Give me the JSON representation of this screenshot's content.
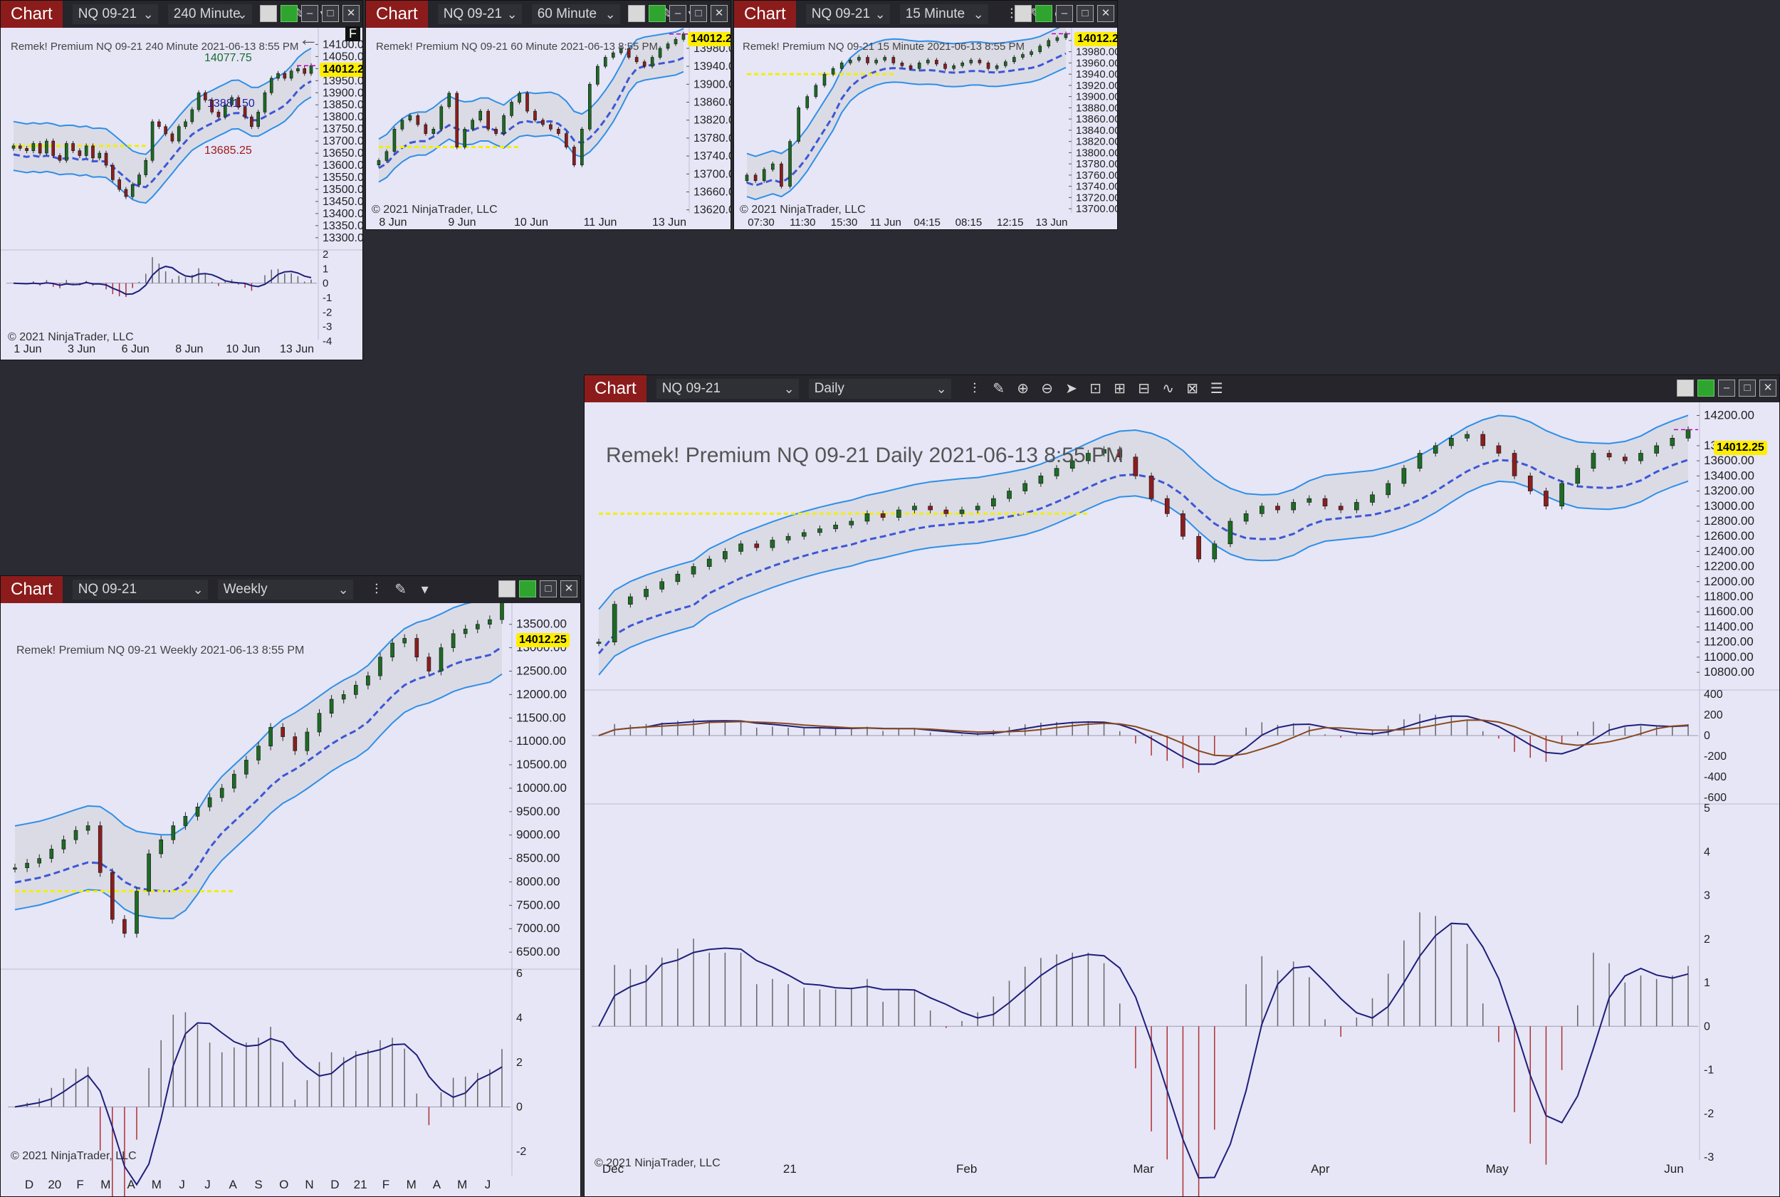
{
  "common": {
    "chart_label": "Chart",
    "copyright": "© 2021 NinjaTrader, LLC",
    "last_price": "14012.25"
  },
  "colors": {
    "bg": "#e6e6f7",
    "band": "#2f8fe6",
    "midline": "#3d57d6",
    "yellow": "#f2ee00",
    "bull": "#1d6b24",
    "bear": "#8b1e1e",
    "osc": "#1f1f7a",
    "osc2": "#8a4a1e",
    "price_tag": "#ffee00",
    "accent_red": "#b01010"
  },
  "charts": [
    {
      "id": "c240",
      "instrument": "NQ 09-21",
      "period": "240 Minute",
      "annotation": "Remek!  Premium  NQ 09-21  240 Minute  2021-06-13 8:55 PM",
      "labels": {
        "high": "14077.75",
        "mid": "13881.50",
        "low": "13685.25"
      },
      "back_icon": "arrow-left-icon",
      "f_label": "F",
      "chart_data": {
        "type": "candlestick",
        "y_ticks": [
          "14100.00",
          "14050.00",
          "14000.00",
          "13950.00",
          "13900.00",
          "13850.00",
          "13800.00",
          "13750.00",
          "13700.00",
          "13650.00",
          "13600.00",
          "13550.00",
          "13500.00",
          "13450.00",
          "13400.00",
          "13350.00",
          "13300.00"
        ],
        "x_ticks": [
          "1 Jun",
          "3 Jun",
          "6 Jun",
          "8 Jun",
          "10 Jun",
          "13 Jun"
        ],
        "osc_ticks": [
          "2",
          "1",
          "0",
          "-1",
          "-2",
          "-3",
          "-4"
        ],
        "ylim": [
          13270,
          14110
        ],
        "close": [
          13680,
          13670,
          13660,
          13690,
          13650,
          13700,
          13640,
          13620,
          13690,
          13660,
          13640,
          13680,
          13630,
          13650,
          13600,
          13540,
          13500,
          13470,
          13520,
          13560,
          13620,
          13780,
          13760,
          13730,
          13700,
          13760,
          13780,
          13830,
          13900,
          13870,
          13820,
          13800,
          13850,
          13880,
          13840,
          13800,
          13760,
          13820,
          13900,
          13960,
          13980,
          13960,
          13990,
          14000,
          13980,
          14012
        ]
      }
    },
    {
      "id": "c60",
      "instrument": "NQ 09-21",
      "period": "60 Minute",
      "annotation": "Remek!  Premium  NQ 09-21  60 Minute  2021-06-13 8:55 PM",
      "chart_data": {
        "type": "candlestick",
        "y_ticks": [
          "13980.00",
          "13940.00",
          "13900.00",
          "13860.00",
          "13820.00",
          "13780.00",
          "13740.00",
          "13700.00",
          "13660.00",
          "13620.00"
        ],
        "x_ticks": [
          "8 Jun",
          "9 Jun",
          "10 Jun",
          "11 Jun",
          "13 Jun"
        ],
        "ylim": [
          13610,
          14010
        ],
        "close": [
          13730,
          13750,
          13800,
          13820,
          13830,
          13810,
          13790,
          13800,
          13850,
          13880,
          13760,
          13800,
          13820,
          13840,
          13800,
          13790,
          13830,
          13860,
          13880,
          13840,
          13820,
          13810,
          13800,
          13790,
          13760,
          13720,
          13800,
          13900,
          13940,
          13960,
          13970,
          13980,
          13960,
          13950,
          13940,
          13960,
          13980,
          13990,
          14000,
          14012
        ]
      }
    },
    {
      "id": "c15",
      "instrument": "NQ 09-21",
      "period": "15 Minute",
      "annotation": "Remek!  Premium  NQ 09-21  15 Minute  2021-06-13 8:55 PM",
      "chart_data": {
        "type": "candlestick",
        "y_ticks": [
          "14000.00",
          "13980.00",
          "13960.00",
          "13940.00",
          "13920.00",
          "13900.00",
          "13880.00",
          "13860.00",
          "13840.00",
          "13820.00",
          "13800.00",
          "13780.00",
          "13760.00",
          "13740.00",
          "13720.00",
          "13700.00"
        ],
        "x_ticks": [
          "07:30",
          "11:30",
          "15:30",
          "11 Jun",
          "04:15",
          "08:15",
          "12:15",
          "13 Jun"
        ],
        "ylim": [
          13690,
          14010
        ],
        "close": [
          13760,
          13750,
          13770,
          13780,
          13740,
          13820,
          13880,
          13900,
          13920,
          13940,
          13950,
          13960,
          13965,
          13970,
          13960,
          13965,
          13970,
          13960,
          13955,
          13950,
          13960,
          13965,
          13958,
          13950,
          13955,
          13960,
          13965,
          13960,
          13950,
          13955,
          13962,
          13970,
          13975,
          13980,
          13990,
          14000,
          14005,
          14012
        ]
      }
    },
    {
      "id": "cW",
      "instrument": "NQ 09-21",
      "period": "Weekly",
      "annotation": "Remek!  Premium  NQ 09-21  Weekly  2021-06-13 8:55 PM",
      "chart_data": {
        "type": "candlestick",
        "y_ticks": [
          "13500.00",
          "13000.00",
          "12500.00",
          "12000.00",
          "11500.00",
          "11000.00",
          "10500.00",
          "10000.00",
          "9500.00",
          "9000.00",
          "8500.00",
          "8000.00",
          "7500.00",
          "7000.00",
          "6500.00"
        ],
        "x_ticks": [
          "D",
          "20",
          "F",
          "M",
          "A",
          "M",
          "J",
          "J",
          "A",
          "S",
          "O",
          "N",
          "D",
          "21",
          "F",
          "M",
          "A",
          "M",
          "J"
        ],
        "osc_ticks": [
          "6",
          "4",
          "2",
          "0",
          "-2"
        ],
        "ylim": [
          6350,
          13800
        ],
        "close": [
          8300,
          8400,
          8500,
          8700,
          8900,
          9100,
          9200,
          8200,
          7200,
          6900,
          7800,
          8600,
          8900,
          9200,
          9400,
          9600,
          9800,
          10000,
          10300,
          10600,
          10900,
          11300,
          11100,
          10800,
          11200,
          11600,
          11900,
          12000,
          12200,
          12400,
          12800,
          13100,
          13200,
          12800,
          12500,
          13000,
          13300,
          13400,
          13500,
          13600,
          14012
        ]
      }
    },
    {
      "id": "cD",
      "instrument": "NQ 09-21",
      "period": "Daily",
      "annotation": "Remek!  Premium  NQ 09-21  Daily  2021-06-13 8:55 PM",
      "chart_data": {
        "type": "candlestick",
        "y_ticks": [
          "14200.00",
          "13800.00",
          "13600.00",
          "13400.00",
          "13200.00",
          "13000.00",
          "12800.00",
          "12600.00",
          "12400.00",
          "12200.00",
          "12000.00",
          "11800.00",
          "11600.00",
          "11400.00",
          "11200.00",
          "11000.00",
          "10800.00"
        ],
        "x_ticks": [
          "Dec",
          "21",
          "Feb",
          "Mar",
          "Apr",
          "May",
          "Jun"
        ],
        "osc1_ticks": [
          "400",
          "200",
          "0",
          "-200",
          "-400",
          "-600"
        ],
        "osc2_ticks": [
          "5",
          "4",
          "3",
          "2",
          "1",
          "0",
          "-1",
          "-2",
          "-3"
        ],
        "ylim": [
          10650,
          14280
        ],
        "close": [
          11200,
          11700,
          11800,
          11900,
          12000,
          12100,
          12200,
          12300,
          12400,
          12500,
          12450,
          12550,
          12600,
          12650,
          12700,
          12750,
          12800,
          12900,
          12850,
          12950,
          13000,
          12950,
          12900,
          12950,
          13000,
          13100,
          13200,
          13300,
          13400,
          13500,
          13600,
          13700,
          13750,
          13650,
          13400,
          13100,
          12900,
          12600,
          12300,
          12500,
          12800,
          12900,
          13000,
          12950,
          13050,
          13100,
          13000,
          12950,
          13050,
          13150,
          13300,
          13500,
          13700,
          13800,
          13900,
          13950,
          13800,
          13700,
          13400,
          13200,
          13000,
          13300,
          13500,
          13700,
          13650,
          13600,
          13700,
          13800,
          13900,
          14012
        ]
      }
    }
  ]
}
